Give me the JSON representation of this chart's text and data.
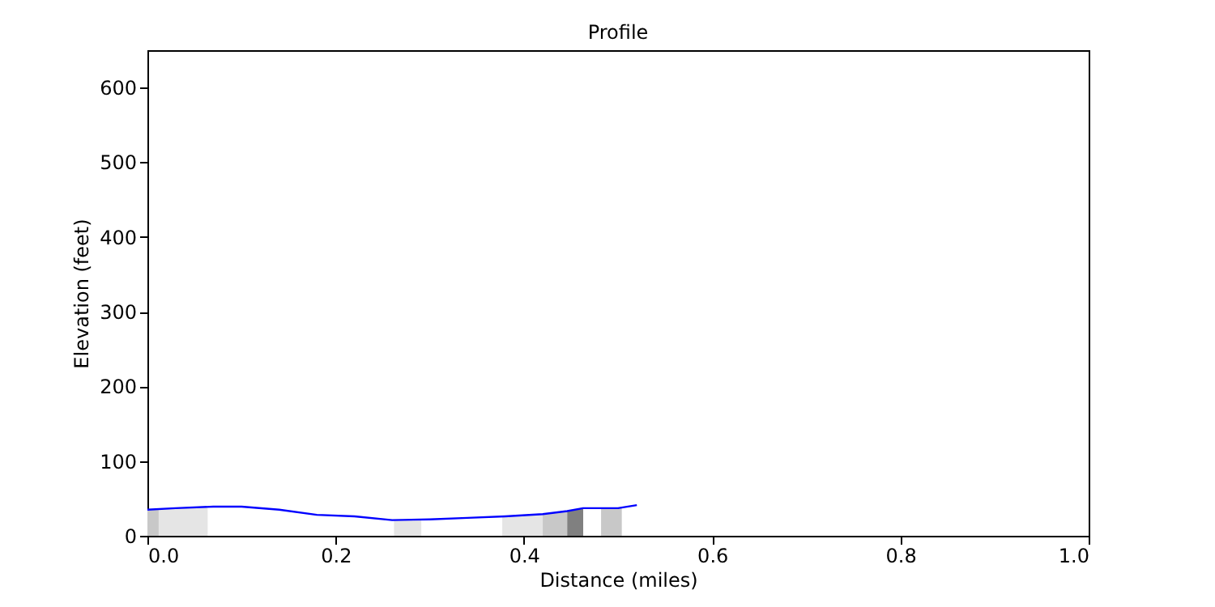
{
  "chart_data": {
    "type": "line",
    "title": "Profile",
    "xlabel": "Distance (miles)",
    "ylabel": "Elevation (feet)",
    "xlim": [
      0,
      1
    ],
    "xticks": [
      {
        "value": 0,
        "label": "0.0"
      },
      {
        "value": 0.2,
        "label": "0.2"
      },
      {
        "value": 0.4,
        "label": "0.4"
      },
      {
        "value": 0.6,
        "label": "0.6"
      },
      {
        "value": 0.8,
        "label": "0.8"
      },
      {
        "value": 1,
        "label": "1.0"
      }
    ],
    "ylim": [
      0,
      650
    ],
    "yticks": [
      0,
      100,
      200,
      300,
      400,
      500,
      600
    ],
    "grid": false,
    "marker": "none",
    "line_style": "solid",
    "series": [
      {
        "type": "area",
        "color": "#c8c8c8",
        "x": [
          0,
          0.012
        ],
        "values": [
          35,
          36
        ]
      },
      {
        "type": "area",
        "color": "#e5e5e5",
        "x": [
          0.012,
          0.064
        ],
        "values": [
          36,
          38
        ]
      },
      {
        "type": "area",
        "color": "#e5e5e5",
        "x": [
          0.262,
          0.291
        ],
        "values": [
          21,
          22
        ]
      },
      {
        "type": "area",
        "color": "#e5e5e5",
        "x": [
          0.377,
          0.42
        ],
        "values": [
          26,
          29
        ]
      },
      {
        "type": "area",
        "color": "#c8c8c8",
        "x": [
          0.42,
          0.446
        ],
        "values": [
          29,
          33
        ]
      },
      {
        "type": "area",
        "color": "#808080",
        "x": [
          0.446,
          0.463
        ],
        "values": [
          33,
          37
        ]
      },
      {
        "type": "area",
        "color": "#c8c8c8",
        "x": [
          0.482,
          0.504
        ],
        "values": [
          37,
          38
        ]
      },
      {
        "type": "line",
        "color": "#0000ff",
        "x": [
          0,
          0.03,
          0.07,
          0.1,
          0.14,
          0.18,
          0.22,
          0.26,
          0.3,
          0.34,
          0.38,
          0.42,
          0.446,
          0.463,
          0.5,
          0.52
        ],
        "values": [
          35,
          37,
          39,
          39,
          35,
          28,
          26,
          21,
          22,
          24,
          26,
          29,
          33,
          37,
          37,
          41
        ]
      }
    ]
  }
}
